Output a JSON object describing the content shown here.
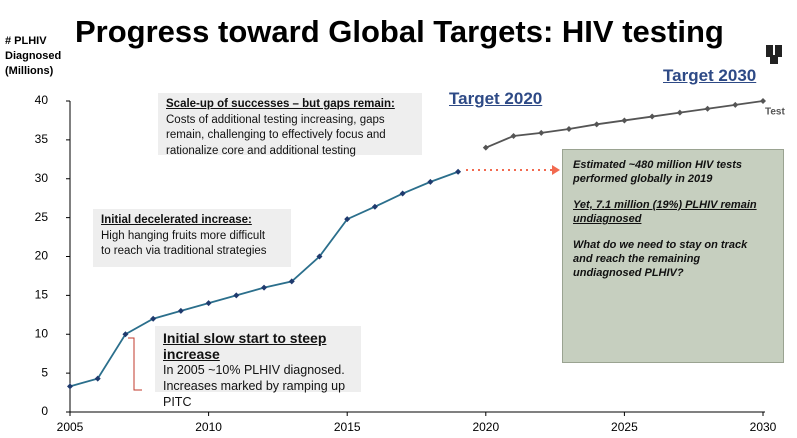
{
  "chart_data": {
    "type": "line",
    "title": "Progress toward Global Targets: HIV testing",
    "y_label": [
      "# PLHIV",
      "Diagnosed",
      "(Millions)"
    ],
    "xlim": [
      2005,
      2030
    ],
    "xticks": [
      2005,
      2010,
      2015,
      2020,
      2025,
      2030
    ],
    "ylim": [
      0,
      40
    ],
    "yticks": [
      0,
      5,
      10,
      15,
      20,
      25,
      30,
      35,
      40
    ],
    "series": [
      {
        "color": "#2b6f8c",
        "marker_color": "#1f3a6e",
        "x": [
          2005,
          2006,
          2007,
          2008,
          2009,
          2010,
          2011,
          2012,
          2013,
          2014,
          2015,
          2016,
          2017,
          2018,
          2019
        ],
        "values": [
          3.3,
          4.3,
          10,
          12,
          13,
          14,
          15,
          16,
          16.8,
          20,
          24.8,
          26.4,
          28.1,
          29.6,
          30.9
        ]
      },
      {
        "color": "#555555",
        "marker_color": "#555555",
        "x": [
          2020,
          2021,
          2022,
          2023,
          2024,
          2025,
          2026,
          2027,
          2028,
          2029,
          2030
        ],
        "values": [
          34,
          35.5,
          35.9,
          36.4,
          37,
          37.5,
          38,
          38.5,
          39,
          39.5,
          40
        ]
      }
    ],
    "series_end_label": "Test",
    "target_labels": [
      "Target 2020",
      "Target 2030"
    ],
    "annotations": [
      {
        "heading": "Scale-up of successes – but gaps remain:",
        "lines": [
          "Costs of additional testing increasing, gaps",
          "remain, challenging to effectively focus and",
          "rationalize core and additional testing"
        ]
      },
      {
        "heading": "Initial decelerated increase:",
        "lines": [
          "High hanging fruits more difficult",
          "to reach via traditional strategies"
        ]
      },
      {
        "heading": "Initial slow start to steep increase",
        "lines": [
          "In 2005 ~10% PLHIV diagnosed.",
          "Increases marked by ramping up",
          "PITC"
        ]
      }
    ],
    "callout": [
      [
        "Estimated ~480 million HIV tests",
        "performed globally in 2019"
      ],
      [
        "Yet, 7.1 million (19%) PLHIV remain",
        "undiagnosed"
      ],
      [
        "What do we need to stay on track",
        "and reach the remaining",
        "undiagnosed PLHIV?"
      ]
    ]
  }
}
